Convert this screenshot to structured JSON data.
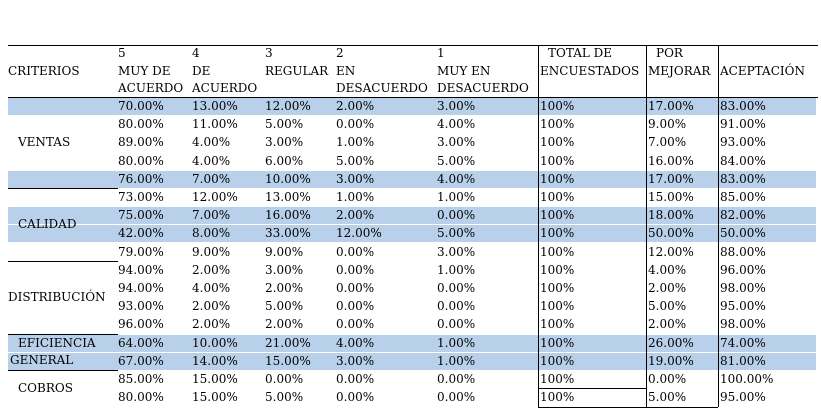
{
  "header": {
    "row1": [
      "5",
      "4",
      "3",
      "2",
      "1",
      "TOTAL DE",
      "POR",
      ""
    ],
    "row2": [
      "CRITERIOS",
      "MUY DE",
      "DE",
      "REGULAR",
      "EN",
      "MUY EN",
      "ENCUESTADOS",
      "MEJORAR",
      "ACEPTACIÓN"
    ],
    "row3": [
      "ACUERDO",
      "ACUERDO",
      "",
      "DESACUERDO",
      "DESACUERDO"
    ]
  },
  "groups": [
    {
      "label": [
        "VENTAS"
      ],
      "rows": [
        {
          "v": [
            "70.00%",
            "13.00%",
            "12.00%",
            "2.00%",
            "3.00%",
            "100%",
            "17.00%",
            "83.00%"
          ],
          "hl": true
        },
        {
          "v": [
            "80.00%",
            "11.00%",
            "5.00%",
            "0.00%",
            "4.00%",
            "100%",
            "9.00%",
            "91.00%"
          ],
          "hl": false
        },
        {
          "v": [
            "89.00%",
            "4.00%",
            "3.00%",
            "1.00%",
            "3.00%",
            "100%",
            "7.00%",
            "93.00%"
          ],
          "hl": false
        },
        {
          "v": [
            "80.00%",
            "4.00%",
            "6.00%",
            "5.00%",
            "5.00%",
            "100%",
            "16.00%",
            "84.00%"
          ],
          "hl": false
        },
        {
          "v": [
            "76.00%",
            "7.00%",
            "10.00%",
            "3.00%",
            "4.00%",
            "100%",
            "17.00%",
            "83.00%"
          ],
          "hl": true
        }
      ]
    },
    {
      "label": [
        "CALIDAD"
      ],
      "rows": [
        {
          "v": [
            "73.00%",
            "12.00%",
            "13.00%",
            "1.00%",
            "1.00%",
            "100%",
            "15.00%",
            "85.00%"
          ],
          "hl": false
        },
        {
          "v": [
            "75.00%",
            "7.00%",
            "16.00%",
            "2.00%",
            "0.00%",
            "100%",
            "18.00%",
            "82.00%"
          ],
          "hl": true
        },
        {
          "v": [
            "42.00%",
            "8.00%",
            "33.00%",
            "12.00%",
            "5.00%",
            "100%",
            "50.00%",
            "50.00%"
          ],
          "hl": true
        },
        {
          "v": [
            "79.00%",
            "9.00%",
            "9.00%",
            "0.00%",
            "3.00%",
            "100%",
            "12.00%",
            "88.00%"
          ],
          "hl": false
        }
      ]
    },
    {
      "label": [
        "DISTRIBUCIÓN"
      ],
      "rows": [
        {
          "v": [
            "94.00%",
            "2.00%",
            "3.00%",
            "0.00%",
            "1.00%",
            "100%",
            "4.00%",
            "96.00%"
          ],
          "hl": false
        },
        {
          "v": [
            "94.00%",
            "4.00%",
            "2.00%",
            "0.00%",
            "0.00%",
            "100%",
            "2.00%",
            "98.00%"
          ],
          "hl": false
        },
        {
          "v": [
            "93.00%",
            "2.00%",
            "5.00%",
            "0.00%",
            "0.00%",
            "100%",
            "5.00%",
            "95.00%"
          ],
          "hl": false
        },
        {
          "v": [
            "96.00%",
            "2.00%",
            "2.00%",
            "0.00%",
            "0.00%",
            "100%",
            "2.00%",
            "98.00%"
          ],
          "hl": false
        }
      ]
    },
    {
      "label": [
        "EFICIENCIA",
        "GENERAL"
      ],
      "rows": [
        {
          "v": [
            "64.00%",
            "10.00%",
            "21.00%",
            "4.00%",
            "1.00%",
            "100%",
            "26.00%",
            "74.00%"
          ],
          "hl": true
        },
        {
          "v": [
            "67.00%",
            "14.00%",
            "15.00%",
            "3.00%",
            "1.00%",
            "100%",
            "19.00%",
            "81.00%"
          ],
          "hl": true
        }
      ]
    },
    {
      "label": [
        "COBROS"
      ],
      "rows": [
        {
          "v": [
            "85.00%",
            "15.00%",
            "0.00%",
            "0.00%",
            "0.00%",
            "100%",
            "0.00%",
            "100.00%"
          ],
          "hl": false
        },
        {
          "v": [
            "80.00%",
            "15.00%",
            "5.00%",
            "0.00%",
            "0.00%",
            "100%",
            "5.00%",
            "95.00%"
          ],
          "hl": false
        }
      ]
    }
  ],
  "colors": {
    "highlight": "#b8d0ea",
    "grid": "#000000"
  }
}
